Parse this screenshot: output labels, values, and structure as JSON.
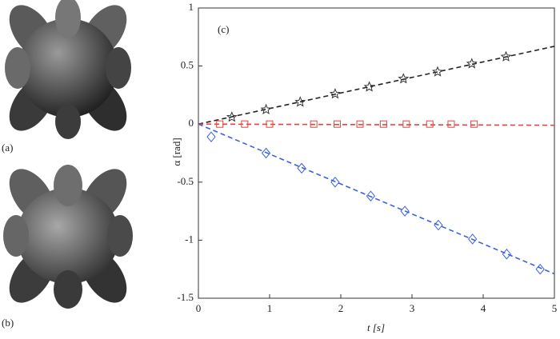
{
  "panel_labels": [
    "(a)",
    "(b)"
  ],
  "chart_data": {
    "type": "scatter",
    "annotation": "(c)",
    "xlabel": "t [s]",
    "ylabel": "α [rad]",
    "xlim": [
      0,
      5
    ],
    "ylim": [
      -1.5,
      1
    ],
    "xticks": [
      0,
      1,
      2,
      3,
      4,
      5
    ],
    "yticks": [
      1,
      0.5,
      0,
      -0.5,
      -1,
      -1.5
    ],
    "series": [
      {
        "color": "#333333",
        "marker": "star",
        "x": [
          0.47,
          0.95,
          1.43,
          1.92,
          2.4,
          2.88,
          3.36,
          3.84,
          4.32
        ],
        "values": [
          0.06,
          0.125,
          0.19,
          0.26,
          0.32,
          0.39,
          0.45,
          0.52,
          0.58
        ]
      },
      {
        "color": "#e8433a",
        "marker": "square",
        "x": [
          0.3,
          0.65,
          1.0,
          1.62,
          1.95,
          2.27,
          2.6,
          2.92,
          3.25,
          3.55,
          3.87
        ],
        "values": [
          0,
          0,
          0,
          0,
          0,
          0,
          0,
          0,
          0,
          0,
          0
        ]
      },
      {
        "color": "#3a62e0",
        "marker": "diamond",
        "x": [
          0.18,
          0.95,
          1.45,
          1.92,
          2.42,
          2.9,
          3.37,
          3.85,
          4.33,
          4.8
        ],
        "values": [
          -0.11,
          -0.25,
          -0.38,
          -0.5,
          -0.62,
          -0.75,
          -0.87,
          -0.99,
          -1.12,
          -1.25
        ]
      }
    ],
    "lines": [
      {
        "color": "#222222",
        "x": [
          0,
          5
        ],
        "values": [
          0,
          0.67
        ]
      },
      {
        "color": "#e8433a",
        "x": [
          0,
          5
        ],
        "values": [
          0,
          -0.01
        ]
      },
      {
        "color": "#3a62e0",
        "x": [
          0,
          5
        ],
        "values": [
          0,
          -1.29
        ]
      }
    ]
  }
}
